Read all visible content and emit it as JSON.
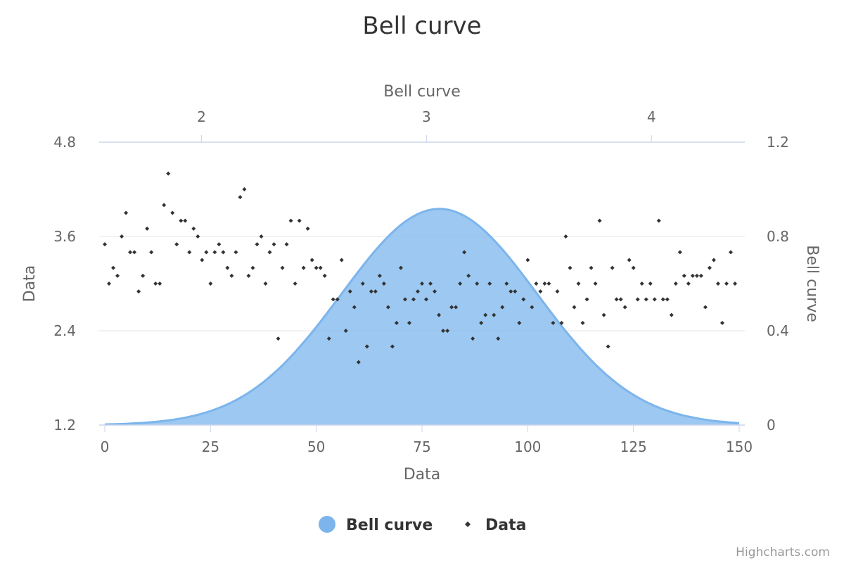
{
  "chart_data": {
    "type": "scatter",
    "title": "Bell curve",
    "legend": {
      "placement": "bottom-center",
      "items": [
        "Bell curve",
        "Data"
      ]
    },
    "credits": "Highcharts.com",
    "colors": {
      "bell_fill": "#7cb5ec",
      "bell_line": "#7cb5ec",
      "points": "#333333",
      "grid": "#e6e6e6",
      "axis": "#ccd6eb",
      "text": "#666666"
    },
    "axes": {
      "x_bottom": {
        "title": "Data",
        "range": [
          0,
          150
        ],
        "ticks": [
          "0",
          "25",
          "50",
          "75",
          "100",
          "125",
          "150"
        ]
      },
      "x_top": {
        "title": "Bell curve",
        "range": [
          1.57,
          4.39
        ],
        "ticks": [
          "2",
          "3",
          "4"
        ]
      },
      "y_left": {
        "title": "Data",
        "range": [
          1.2,
          4.8
        ],
        "ticks": [
          "1.2",
          "2.4",
          "3.6",
          "4.8"
        ],
        "grid": true
      },
      "y_right": {
        "title": "Bell curve",
        "range": [
          0,
          1.2
        ],
        "ticks": [
          "0",
          "0.4",
          "0.8",
          "1.2"
        ]
      }
    },
    "series": [
      {
        "name": "Bell curve",
        "type": "area",
        "mean": 3.057,
        "sd": 0.435,
        "x_range": [
          1.57,
          4.39
        ],
        "y_peak": 0.917
      },
      {
        "name": "Data",
        "type": "scatter",
        "values": [
          3.5,
          3.0,
          3.2,
          3.1,
          3.6,
          3.9,
          3.4,
          3.4,
          2.9,
          3.1,
          3.7,
          3.4,
          3.0,
          3.0,
          4.0,
          4.4,
          3.9,
          3.5,
          3.8,
          3.8,
          3.4,
          3.7,
          3.6,
          3.3,
          3.4,
          3.0,
          3.4,
          3.5,
          3.4,
          3.2,
          3.1,
          3.4,
          4.1,
          4.2,
          3.1,
          3.2,
          3.5,
          3.6,
          3.0,
          3.4,
          3.5,
          2.3,
          3.2,
          3.5,
          3.8,
          3.0,
          3.8,
          3.2,
          3.7,
          3.3,
          3.2,
          3.2,
          3.1,
          2.3,
          2.8,
          2.8,
          3.3,
          2.4,
          2.9,
          2.7,
          2.0,
          3.0,
          2.2,
          2.9,
          2.9,
          3.1,
          3.0,
          2.7,
          2.2,
          2.5,
          3.2,
          2.8,
          2.5,
          2.8,
          2.9,
          3.0,
          2.8,
          3.0,
          2.9,
          2.6,
          2.4,
          2.4,
          2.7,
          2.7,
          3.0,
          3.4,
          3.1,
          2.3,
          3.0,
          2.5,
          2.6,
          3.0,
          2.6,
          2.3,
          2.7,
          3.0,
          2.9,
          2.9,
          2.5,
          2.8,
          3.3,
          2.7,
          3.0,
          2.9,
          3.0,
          3.0,
          2.5,
          2.9,
          2.5,
          3.6,
          3.2,
          2.7,
          3.0,
          2.5,
          2.8,
          3.2,
          3.0,
          3.8,
          2.6,
          2.2,
          3.2,
          2.8,
          2.8,
          2.7,
          3.3,
          3.2,
          2.8,
          3.0,
          2.8,
          3.0,
          2.8,
          3.8,
          2.8,
          2.8,
          2.6,
          3.0,
          3.4,
          3.1,
          3.0,
          3.1,
          3.1,
          3.1,
          2.7,
          3.2,
          3.3,
          3.0,
          2.5,
          3.0,
          3.4,
          3.0
        ]
      }
    ]
  }
}
